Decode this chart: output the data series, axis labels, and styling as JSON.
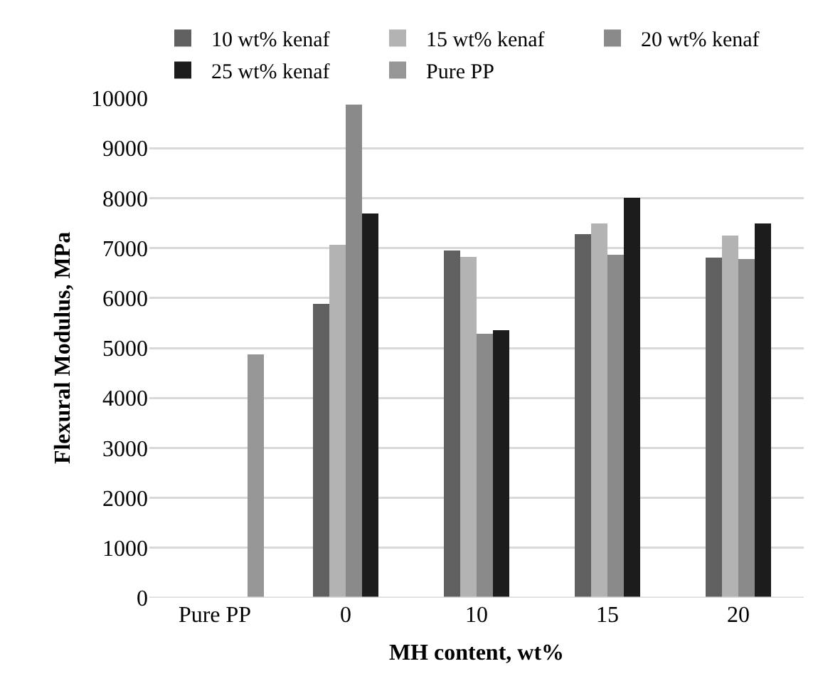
{
  "chart_data": {
    "type": "bar",
    "xlabel": "MH content, wt%",
    "ylabel": "Flexural Modulus, MPa",
    "categories": [
      "Pure PP",
      "0",
      "10",
      "15",
      "20"
    ],
    "series": [
      {
        "name": "10 wt% kenaf",
        "color": "#606060",
        "values": [
          null,
          5880,
          6950,
          7280,
          6810
        ]
      },
      {
        "name": "15 wt% kenaf",
        "color": "#b3b3b3",
        "values": [
          null,
          7070,
          6830,
          7490,
          7250
        ]
      },
      {
        "name": "20 wt% kenaf",
        "color": "#8a8a8a",
        "values": [
          null,
          9870,
          5290,
          6860,
          6780
        ]
      },
      {
        "name": "25 wt% kenaf",
        "color": "#1c1c1c",
        "values": [
          null,
          7690,
          5360,
          8010,
          7500
        ]
      },
      {
        "name": "Pure PP",
        "color": "#969696",
        "values": [
          4870,
          null,
          null,
          null,
          null
        ]
      }
    ],
    "ylim": [
      0,
      10000
    ],
    "yticks": [
      0,
      1000,
      2000,
      3000,
      4000,
      5000,
      6000,
      7000,
      8000,
      9000,
      10000
    ],
    "grid": "y",
    "legend": "top"
  }
}
